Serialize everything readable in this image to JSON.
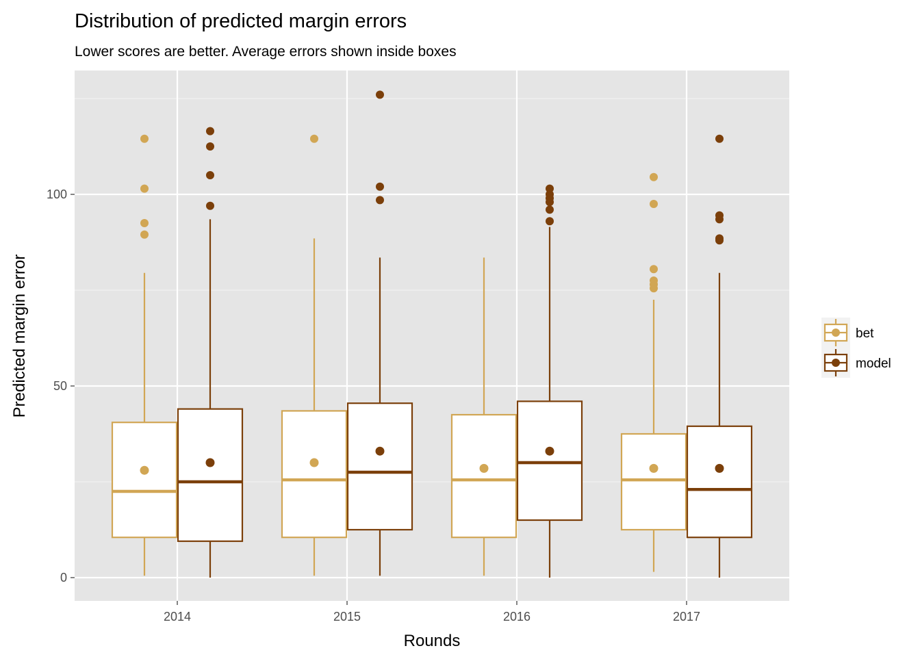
{
  "chart_data": {
    "type": "boxplot",
    "title": "Distribution of predicted margin errors",
    "subtitle": "Lower scores are better. Average errors shown inside boxes",
    "xlabel": "Rounds",
    "ylabel": "Predicted margin error",
    "categories": [
      "2014",
      "2015",
      "2016",
      "2017"
    ],
    "y_ticks": [
      0,
      50,
      100
    ],
    "y_tick_labels": [
      "0",
      "50",
      "100"
    ],
    "ylim": [
      -6,
      132
    ],
    "grid": true,
    "legend_position": "right",
    "series": [
      {
        "name": "bet",
        "color": "#D1A654",
        "boxes": [
          {
            "category": "2014",
            "q1": 10.5,
            "median": 22.5,
            "q3": 40.5,
            "whisker_low": 0.5,
            "whisker_high": 79.5,
            "mean": 28,
            "outliers": [
              89.5,
              92.5,
              101.5,
              114.5
            ]
          },
          {
            "category": "2015",
            "q1": 10.5,
            "median": 25.5,
            "q3": 43.5,
            "whisker_low": 0.5,
            "whisker_high": 88.5,
            "mean": 30,
            "outliers": [
              114.5
            ]
          },
          {
            "category": "2016",
            "q1": 10.5,
            "median": 25.5,
            "q3": 42.5,
            "whisker_low": 0.5,
            "whisker_high": 83.5,
            "mean": 28.5,
            "outliers": []
          },
          {
            "category": "2017",
            "q1": 12.5,
            "median": 25.5,
            "q3": 37.5,
            "whisker_low": 1.5,
            "whisker_high": 72.5,
            "mean": 28.5,
            "outliers": [
              75.5,
              76.5,
              77.5,
              80.5,
              97.5,
              104.5
            ]
          }
        ]
      },
      {
        "name": "model",
        "color": "#7B3F0A",
        "boxes": [
          {
            "category": "2014",
            "q1": 9.5,
            "median": 25,
            "q3": 44,
            "whisker_low": 0,
            "whisker_high": 93.5,
            "mean": 30,
            "outliers": [
              97,
              105,
              112.5,
              116.5
            ]
          },
          {
            "category": "2015",
            "q1": 12.5,
            "median": 27.5,
            "q3": 45.5,
            "whisker_low": 0.5,
            "whisker_high": 83.5,
            "mean": 33,
            "outliers": [
              98.5,
              102,
              126
            ]
          },
          {
            "category": "2016",
            "q1": 15,
            "median": 30,
            "q3": 46,
            "whisker_low": 0,
            "whisker_high": 91.5,
            "mean": 33,
            "outliers": [
              93,
              96,
              98,
              99,
              100,
              101.5
            ]
          },
          {
            "category": "2017",
            "q1": 10.5,
            "median": 23,
            "q3": 39.5,
            "whisker_low": 0,
            "whisker_high": 79.5,
            "mean": 28.5,
            "outliers": [
              88,
              88.5,
              93.5,
              94.5,
              114.5
            ]
          }
        ]
      }
    ]
  }
}
